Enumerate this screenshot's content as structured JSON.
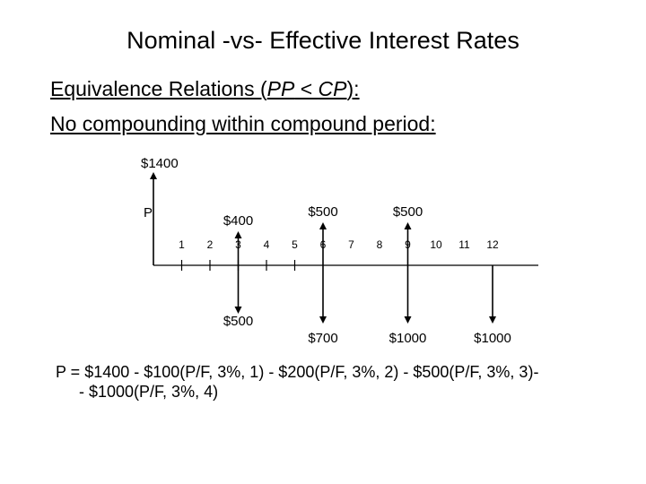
{
  "slide": {
    "title": "Nominal -vs- Effective Interest Rates",
    "subtitle_prefix": "Equivalence Relations (",
    "subtitle_pp": "PP",
    "subtitle_lt": " < ",
    "subtitle_cp": "CP",
    "subtitle_suffix": "):",
    "subtitle2": "No compounding within compound period:"
  },
  "diagram": {
    "periods": [
      "1",
      "2",
      "3",
      "4",
      "5",
      "6",
      "7",
      "8",
      "9",
      "10",
      "11",
      "12"
    ],
    "p_label": "P",
    "flows": [
      {
        "period": 0,
        "direction": "up",
        "label": "$1400"
      },
      {
        "period": 3,
        "direction": "up",
        "label": "$400"
      },
      {
        "period": 3,
        "direction": "down",
        "label": "$500"
      },
      {
        "period": 6,
        "direction": "up",
        "label": "$500"
      },
      {
        "period": 6,
        "direction": "down",
        "label": "$700"
      },
      {
        "period": 9,
        "direction": "up",
        "label": "$500"
      },
      {
        "period": 9,
        "direction": "down",
        "label": "$1000"
      },
      {
        "period": 12,
        "direction": "down",
        "label": "$1000"
      }
    ]
  },
  "equation": {
    "line1": "P = $1400 - $100(P/F, 3%, 1) - $200(P/F, 3%, 2) - $500(P/F, 3%, 3)-",
    "line2": "- $1000(P/F, 3%, 4)"
  }
}
